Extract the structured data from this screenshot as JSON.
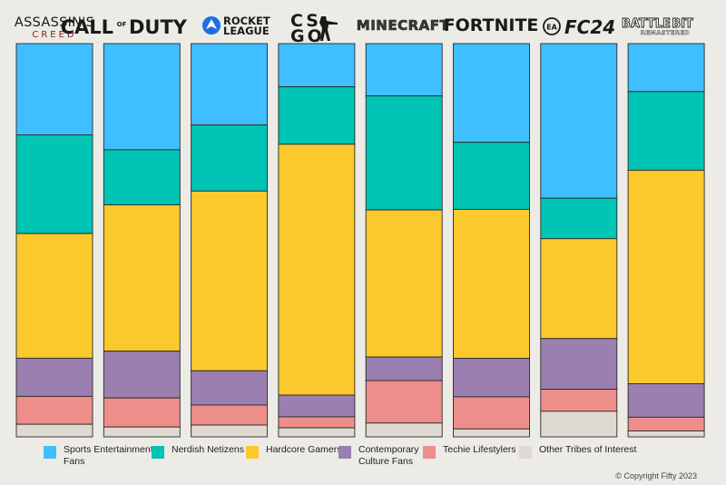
{
  "chart_data": {
    "type": "bar",
    "stacked": "100%",
    "title": "",
    "xlabel": "",
    "ylabel": "",
    "ylim": [
      0,
      100
    ],
    "categories": [
      "Assassin's Creed",
      "Call of Duty",
      "Rocket League",
      "CS GO",
      "Minecraft",
      "Fortnite",
      "EA FC24",
      "BattleBit Remastered"
    ],
    "series": [
      {
        "name": "Sports Entertainment Fans",
        "color": "#3fbfff",
        "values": [
          23.2,
          27.0,
          20.7,
          11.0,
          13.3,
          24.9,
          39.3,
          12.2
        ]
      },
      {
        "name": "Nerdish Netizens",
        "color": "#00c4b4",
        "values": [
          25.1,
          14.0,
          16.8,
          14.6,
          29.0,
          16.9,
          10.3,
          20.0
        ]
      },
      {
        "name": "Hardcore Gamers",
        "color": "#fbc92c",
        "values": [
          31.7,
          37.2,
          45.7,
          63.8,
          37.4,
          37.6,
          25.4,
          54.3
        ]
      },
      {
        "name": "Contemporary Culture Fans",
        "color": "#9b7fb0",
        "values": [
          9.7,
          11.9,
          8.7,
          5.5,
          6.0,
          9.7,
          12.9,
          8.5
        ]
      },
      {
        "name": "Techie Lifestylers",
        "color": "#ee8e8b",
        "values": [
          7.1,
          7.4,
          5.1,
          2.8,
          10.8,
          8.1,
          5.6,
          3.5
        ]
      },
      {
        "name": "Other Tribes of Interest",
        "color": "#dedad1",
        "values": [
          3.2,
          2.5,
          3.0,
          2.3,
          3.5,
          2.0,
          6.5,
          1.5
        ]
      }
    ],
    "legend_position": "bottom"
  },
  "logos": [
    {
      "line1": "ASSASSIN'S",
      "line2": "CREED"
    },
    {
      "line1": "CALL",
      "sup": "OF",
      "line2": "DUTY"
    },
    {
      "line1": "ROCKET",
      "line2": "LEAGUE"
    },
    {
      "line1": "CS",
      "line2": "GO"
    },
    {
      "line1": "MINECRAFT"
    },
    {
      "line1": "FORTNITE"
    },
    {
      "badge": "EA",
      "line1": "FC24"
    },
    {
      "line1": "BATTLE",
      "line1b": "BIT",
      "line2": "REMASTERED"
    }
  ],
  "legend": [
    {
      "label": "Sports Entertainment Fans",
      "color": "#3fbfff"
    },
    {
      "label": "Nerdish Netizens",
      "color": "#00c4b4"
    },
    {
      "label": "Hardcore Gamers",
      "color": "#fbc92c"
    },
    {
      "label": "Contemporary Culture Fans",
      "color": "#9b7fb0"
    },
    {
      "label": "Techie Lifestylers",
      "color": "#ee8e8b"
    },
    {
      "label": "Other Tribes of Interest",
      "color": "#dedad1"
    }
  ],
  "copyright": "© Copyright Fifty 2023"
}
